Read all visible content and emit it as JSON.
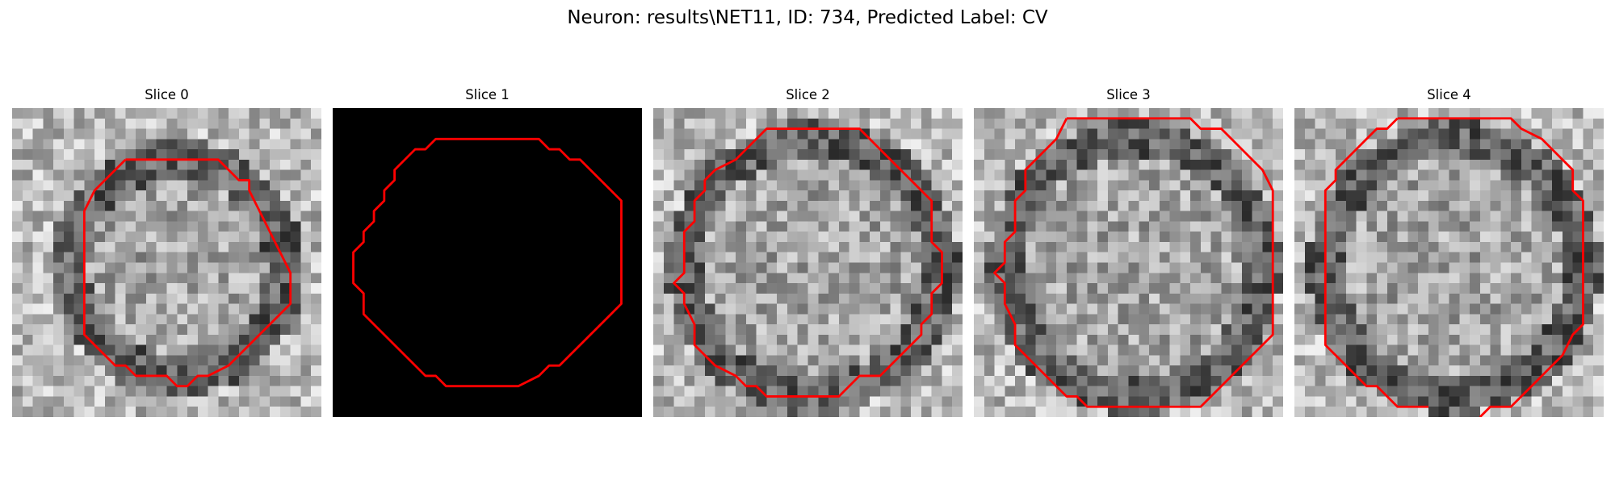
{
  "figure": {
    "title": "Neuron: results\\NET11, ID: 734, Predicted Label: CV",
    "contour_color": "#ff0000",
    "panels": [
      {
        "title": "Slice 0",
        "background": "noisy-grayscale",
        "seed": 11,
        "blank": false
      },
      {
        "title": "Slice 1",
        "background": "black",
        "seed": 23,
        "blank": true
      },
      {
        "title": "Slice 2",
        "background": "noisy-grayscale",
        "seed": 37,
        "blank": false
      },
      {
        "title": "Slice 3",
        "background": "noisy-grayscale",
        "seed": 53,
        "blank": false
      },
      {
        "title": "Slice 4",
        "background": "noisy-grayscale",
        "seed": 71,
        "blank": false
      }
    ]
  }
}
